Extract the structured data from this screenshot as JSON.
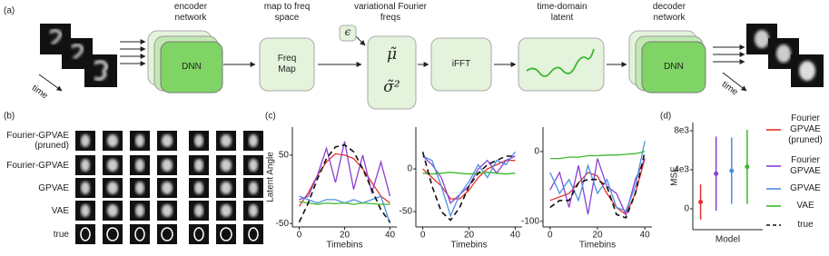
{
  "panel_a": {
    "label": "(a)",
    "encoder_label": "encoder network",
    "encoder_box": "DNN",
    "map_label": "map to freq space",
    "map_box": "Freq Map",
    "freqs_label": "variational Fourier freqs",
    "epsilon": "ϵ",
    "mu": "μ̃",
    "sigma": "σ̃²",
    "ifft_box": "iFFT",
    "latent_label": "time-domain latent",
    "decoder_label": "decoder network",
    "decoder_box": "DNN",
    "time_in": "time",
    "time_out": "time"
  },
  "panel_b": {
    "label": "(b)",
    "rows": [
      "Fourier-GPVAE (pruned)",
      "Fourier-GPVAE",
      "GPVAE",
      "VAE",
      "true"
    ]
  },
  "panel_c": {
    "label": "(c)",
    "ylabel": "Latent Angle"
  },
  "panel_d": {
    "label": "(d)"
  },
  "chart_data": [
    {
      "type": "line",
      "xlabel": "Timebins",
      "x": [
        0,
        4,
        8,
        12,
        16,
        20,
        24,
        28,
        32,
        36,
        40
      ],
      "xlim": [
        -3,
        43
      ],
      "xticks": [
        0,
        20,
        40
      ],
      "ylim": [
        -55,
        91
      ],
      "yticks": [
        -50,
        50
      ],
      "series": [
        {
          "name": "Fourier GPVAE (pruned)",
          "color": "#e8302a",
          "values": [
            -25,
            -5,
            20,
            40,
            52,
            50,
            45,
            30,
            10,
            -10,
            -20
          ]
        },
        {
          "name": "Fourier GPVAE",
          "color": "#8a3fd1",
          "values": [
            -15,
            -10,
            20,
            60,
            10,
            70,
            0,
            50,
            -5,
            40,
            -10
          ]
        },
        {
          "name": "GPVAE",
          "color": "#4a90e2",
          "values": [
            -10,
            -15,
            -20,
            -15,
            -15,
            -20,
            -15,
            -20,
            -15,
            -10,
            -50
          ]
        },
        {
          "name": "VAE",
          "color": "#3cb82e",
          "values": [
            -18,
            -20,
            -22,
            -20,
            -21,
            -20,
            -22,
            -20,
            -21,
            -22,
            -22
          ]
        },
        {
          "name": "true",
          "color": "#111111",
          "dashed": true,
          "values": [
            -48,
            -20,
            15,
            45,
            62,
            65,
            55,
            30,
            0,
            -30,
            -48
          ]
        }
      ]
    },
    {
      "type": "line",
      "xlabel": "Timebins",
      "x": [
        0,
        4,
        8,
        12,
        16,
        20,
        24,
        28,
        32,
        36,
        40
      ],
      "xlim": [
        -3,
        43
      ],
      "xticks": [
        0,
        20,
        40
      ],
      "ylim": [
        -68,
        49
      ],
      "yticks": [
        -50,
        0
      ],
      "series": [
        {
          "color": "#e8302a",
          "values": [
            0,
            -10,
            -20,
            -35,
            -35,
            -25,
            -10,
            0,
            5,
            10,
            10
          ]
        },
        {
          "color": "#8a3fd1",
          "values": [
            15,
            5,
            -10,
            -40,
            -30,
            -20,
            0,
            10,
            -5,
            10,
            15
          ]
        },
        {
          "color": "#4a90e2",
          "values": [
            15,
            10,
            -20,
            -55,
            -30,
            -15,
            5,
            -10,
            10,
            5,
            20
          ]
        },
        {
          "color": "#3cb82e",
          "values": [
            -5,
            -6,
            -5,
            -4,
            -5,
            -6,
            -5,
            -4,
            -5,
            -6,
            -5
          ]
        },
        {
          "color": "#111111",
          "dashed": true,
          "values": [
            20,
            -20,
            -50,
            -60,
            -45,
            -20,
            -5,
            5,
            10,
            15,
            15
          ]
        }
      ]
    },
    {
      "type": "line",
      "xlabel": "Timebins",
      "x": [
        0,
        4,
        8,
        12,
        16,
        20,
        24,
        28,
        32,
        36,
        40
      ],
      "xlim": [
        -3,
        43
      ],
      "xticks": [
        0,
        20,
        40
      ],
      "ylim": [
        -108,
        35
      ],
      "yticks": [
        -100,
        0
      ],
      "series": [
        {
          "color": "#e8302a",
          "values": [
            -70,
            -65,
            -60,
            -45,
            -30,
            -35,
            -60,
            -80,
            -90,
            -60,
            -10
          ]
        },
        {
          "color": "#8a3fd1",
          "values": [
            -55,
            -30,
            -80,
            -20,
            -90,
            -10,
            -50,
            -60,
            -90,
            -40,
            -10
          ]
        },
        {
          "color": "#4a90e2",
          "values": [
            -30,
            -60,
            -40,
            -70,
            -20,
            -60,
            -40,
            -80,
            -85,
            -50,
            15
          ]
        },
        {
          "color": "#3cb82e",
          "values": [
            -10,
            -10,
            -8,
            -8,
            -6,
            -6,
            -5,
            -5,
            -4,
            -3,
            0
          ]
        },
        {
          "color": "#111111",
          "dashed": true,
          "values": [
            -80,
            -70,
            -70,
            -45,
            -40,
            -40,
            -50,
            -90,
            -95,
            -60,
            0
          ]
        }
      ]
    },
    {
      "type": "errorbar",
      "ylabel": "MSE",
      "xlabel": "Model",
      "ylim": [
        -2140,
        8840
      ],
      "yticks": [
        {
          "value": 0,
          "label": "0"
        },
        {
          "value": 4000,
          "label": "4e3"
        },
        {
          "value": 8000,
          "label": "8e3"
        }
      ],
      "series": [
        {
          "color": "#e8302a",
          "value": 700,
          "error": 1800
        },
        {
          "color": "#8a3fd1",
          "value": 3600,
          "error": 3800
        },
        {
          "color": "#4a90e2",
          "value": 3900,
          "error": 3400
        },
        {
          "color": "#3cb82e",
          "value": 4300,
          "error": 3800
        }
      ]
    }
  ]
}
